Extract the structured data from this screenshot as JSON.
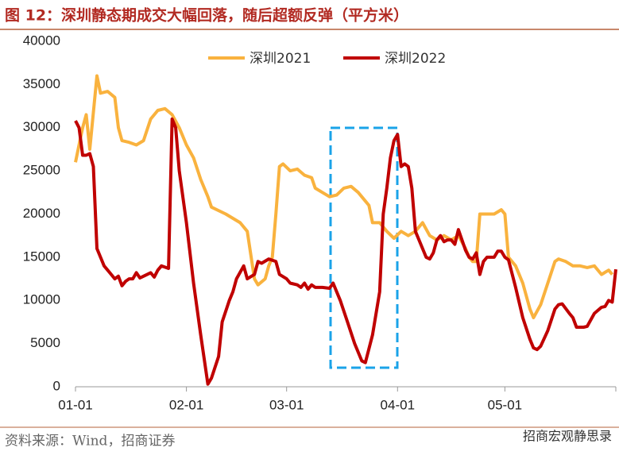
{
  "chart_data": {
    "type": "line",
    "title": "图 12：深圳静态期成交大幅回落，随后超额反弹（平方米）",
    "source": "资料来源：Wind，招商证券",
    "watermark": "招商宏观静思录",
    "xlim": [
      0,
      151
    ],
    "xticks": [
      {
        "value": 0,
        "label": "01-01"
      },
      {
        "value": 31,
        "label": "02-01"
      },
      {
        "value": 59,
        "label": "03-01"
      },
      {
        "value": 90,
        "label": "04-01"
      },
      {
        "value": 120,
        "label": "05-01"
      }
    ],
    "ylim": [
      0,
      40000
    ],
    "yticks": [
      0,
      5000,
      10000,
      15000,
      20000,
      25000,
      30000,
      35000,
      40000
    ],
    "legend": "top",
    "series": [
      {
        "name": "深圳2021",
        "color": "#f9b23e",
        "x": [
          0,
          2,
          3,
          4,
          6,
          7,
          9,
          11,
          12,
          13,
          15,
          17,
          19,
          21,
          23,
          25,
          27,
          29,
          31,
          33,
          35,
          37,
          38,
          42,
          46,
          48,
          50,
          51,
          53,
          54,
          55,
          56,
          57,
          58,
          60,
          62,
          64,
          66,
          67,
          69,
          71,
          73,
          75,
          77,
          79,
          81,
          82,
          83,
          85,
          87,
          89,
          91,
          93,
          95,
          97,
          99,
          101,
          103,
          105,
          107,
          109,
          110,
          111,
          112,
          113,
          115,
          117,
          119,
          120,
          121,
          123,
          125,
          127,
          128,
          130,
          132,
          134,
          135,
          137,
          139,
          141,
          143,
          145,
          147,
          149,
          150
        ],
        "values": [
          26000,
          30000,
          31500,
          27500,
          36000,
          34000,
          34200,
          33500,
          30000,
          28500,
          28300,
          28000,
          28500,
          31000,
          32000,
          32200,
          31500,
          30000,
          28000,
          26500,
          24000,
          22000,
          20800,
          20000,
          19000,
          18000,
          12500,
          11800,
          12500,
          14000,
          15000,
          20000,
          25500,
          25800,
          25000,
          25200,
          24500,
          24200,
          23000,
          22500,
          22000,
          22200,
          23000,
          23200,
          22500,
          21500,
          21000,
          19000,
          19000,
          18000,
          17200,
          18000,
          17500,
          18000,
          19000,
          17500,
          17000,
          17500,
          17000,
          17500,
          16000,
          15000,
          14500,
          14500,
          20000,
          20000,
          20000,
          20500,
          20000,
          15000,
          14000,
          12000,
          9000,
          8000,
          9500,
          12000,
          14500,
          14800,
          14500,
          14000,
          14000,
          13800,
          14000,
          13000,
          13500,
          13000
        ]
      },
      {
        "name": "深圳2022",
        "color": "#c00000",
        "x": [
          0,
          1,
          2,
          3,
          4,
          5,
          6,
          7,
          8,
          9,
          10,
          11,
          12,
          13,
          14,
          15,
          16,
          17,
          18,
          19,
          21,
          22,
          23,
          24,
          26,
          27,
          28,
          29,
          31,
          33,
          35,
          37,
          38,
          40,
          41,
          43,
          44,
          45,
          47,
          48,
          50,
          51,
          52,
          54,
          56,
          57,
          59,
          60,
          62,
          63,
          64,
          65,
          66,
          67,
          69,
          71,
          72,
          74,
          76,
          78,
          80,
          81,
          83,
          85,
          86,
          87,
          88,
          89,
          90,
          91,
          92,
          93,
          94,
          95,
          96,
          97,
          98,
          99,
          100,
          101,
          102,
          103,
          104,
          105,
          106,
          107,
          108,
          109,
          110,
          111,
          112,
          113,
          114,
          115,
          116,
          117,
          118,
          119,
          120,
          121,
          123,
          125,
          127,
          128,
          129,
          130,
          132,
          134,
          135,
          136,
          138,
          139,
          140,
          142,
          143,
          145,
          147,
          148,
          149,
          150,
          151
        ],
        "values": [
          30800,
          30000,
          26800,
          26800,
          27000,
          25500,
          16000,
          15000,
          14000,
          13500,
          13000,
          12500,
          12800,
          11700,
          12200,
          12500,
          12500,
          13200,
          12600,
          12800,
          13200,
          12700,
          13500,
          14000,
          13700,
          31000,
          30000,
          25000,
          19000,
          12000,
          6000,
          300,
          1000,
          3500,
          7500,
          10000,
          11000,
          12500,
          14000,
          12500,
          13000,
          14500,
          14300,
          14800,
          14500,
          13000,
          12500,
          12000,
          11800,
          11500,
          12000,
          11300,
          11800,
          11500,
          11500,
          11400,
          12000,
          10000,
          7500,
          5000,
          3000,
          2800,
          6000,
          11000,
          20000,
          23000,
          26500,
          28500,
          29200,
          25500,
          25800,
          25500,
          23000,
          18000,
          17000,
          16000,
          15000,
          14800,
          15500,
          17000,
          17500,
          16800,
          17000,
          17000,
          16500,
          18200,
          17000,
          15800,
          15000,
          14800,
          15500,
          13000,
          14500,
          15000,
          15000,
          15000,
          15700,
          15700,
          15000,
          14700,
          11500,
          8000,
          5500,
          4500,
          4300,
          4700,
          6500,
          9000,
          9500,
          9600,
          8500,
          8000,
          6900,
          6900,
          7000,
          8500,
          9200,
          9300,
          10000,
          9800,
          13600
        ]
      }
    ]
  }
}
